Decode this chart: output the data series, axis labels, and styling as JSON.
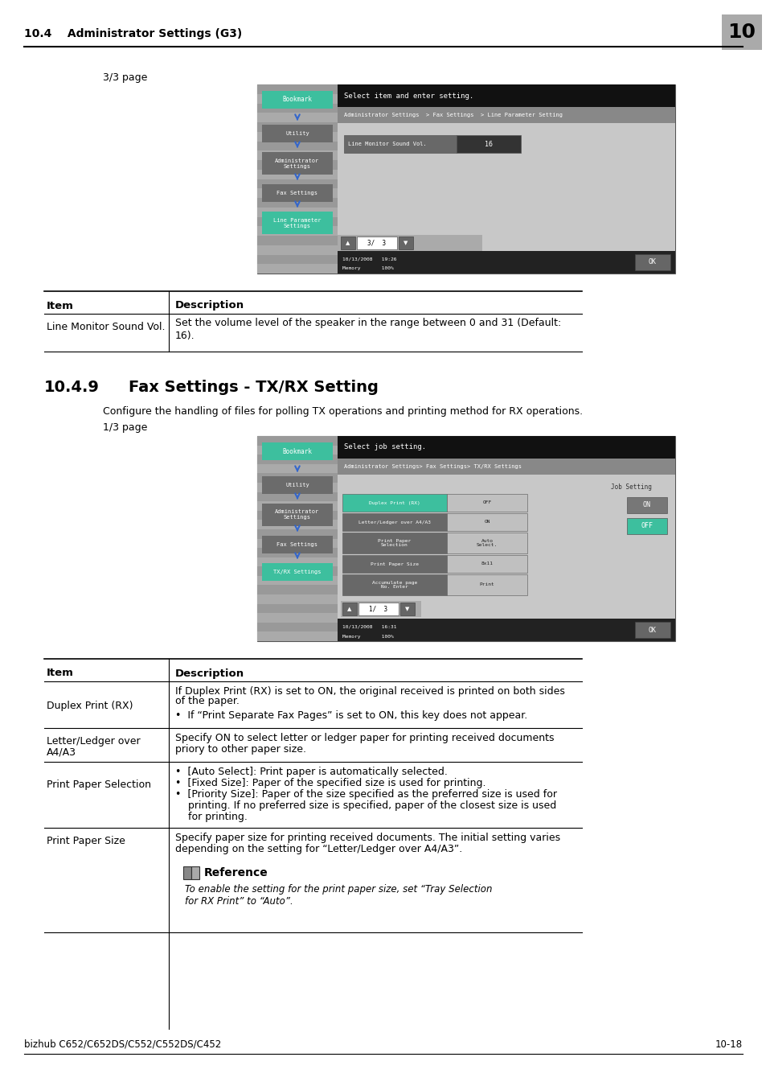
{
  "bg_color": "#ffffff",
  "header_text": "10.4    Administrator Settings (G3)",
  "header_num": "10",
  "footer_left": "bizhub C652/C652DS/C552/C552DS/C452",
  "footer_right": "10-18",
  "section1_label": "3/3 page",
  "section_title_num": "10.4.9",
  "section_title": "Fax Settings - TX/RX Setting",
  "section_desc": "Configure the handling of files for polling TX operations and printing method for RX operations.",
  "section2_label": "1/3 page",
  "teal": "#3dbf9e",
  "dark_gray_btn": "#6b6b6b",
  "blue_arrow": "#3366cc",
  "screen_gray": "#a8a8a8",
  "screen_stripe": "#8a8a8a",
  "screen_dark": "#2a2a2a",
  "screen_mid": "#686868",
  "screen_light_content": "#c0c0c0",
  "item_label_color": "#585858",
  "item_value_dark": "#2a2a2a"
}
